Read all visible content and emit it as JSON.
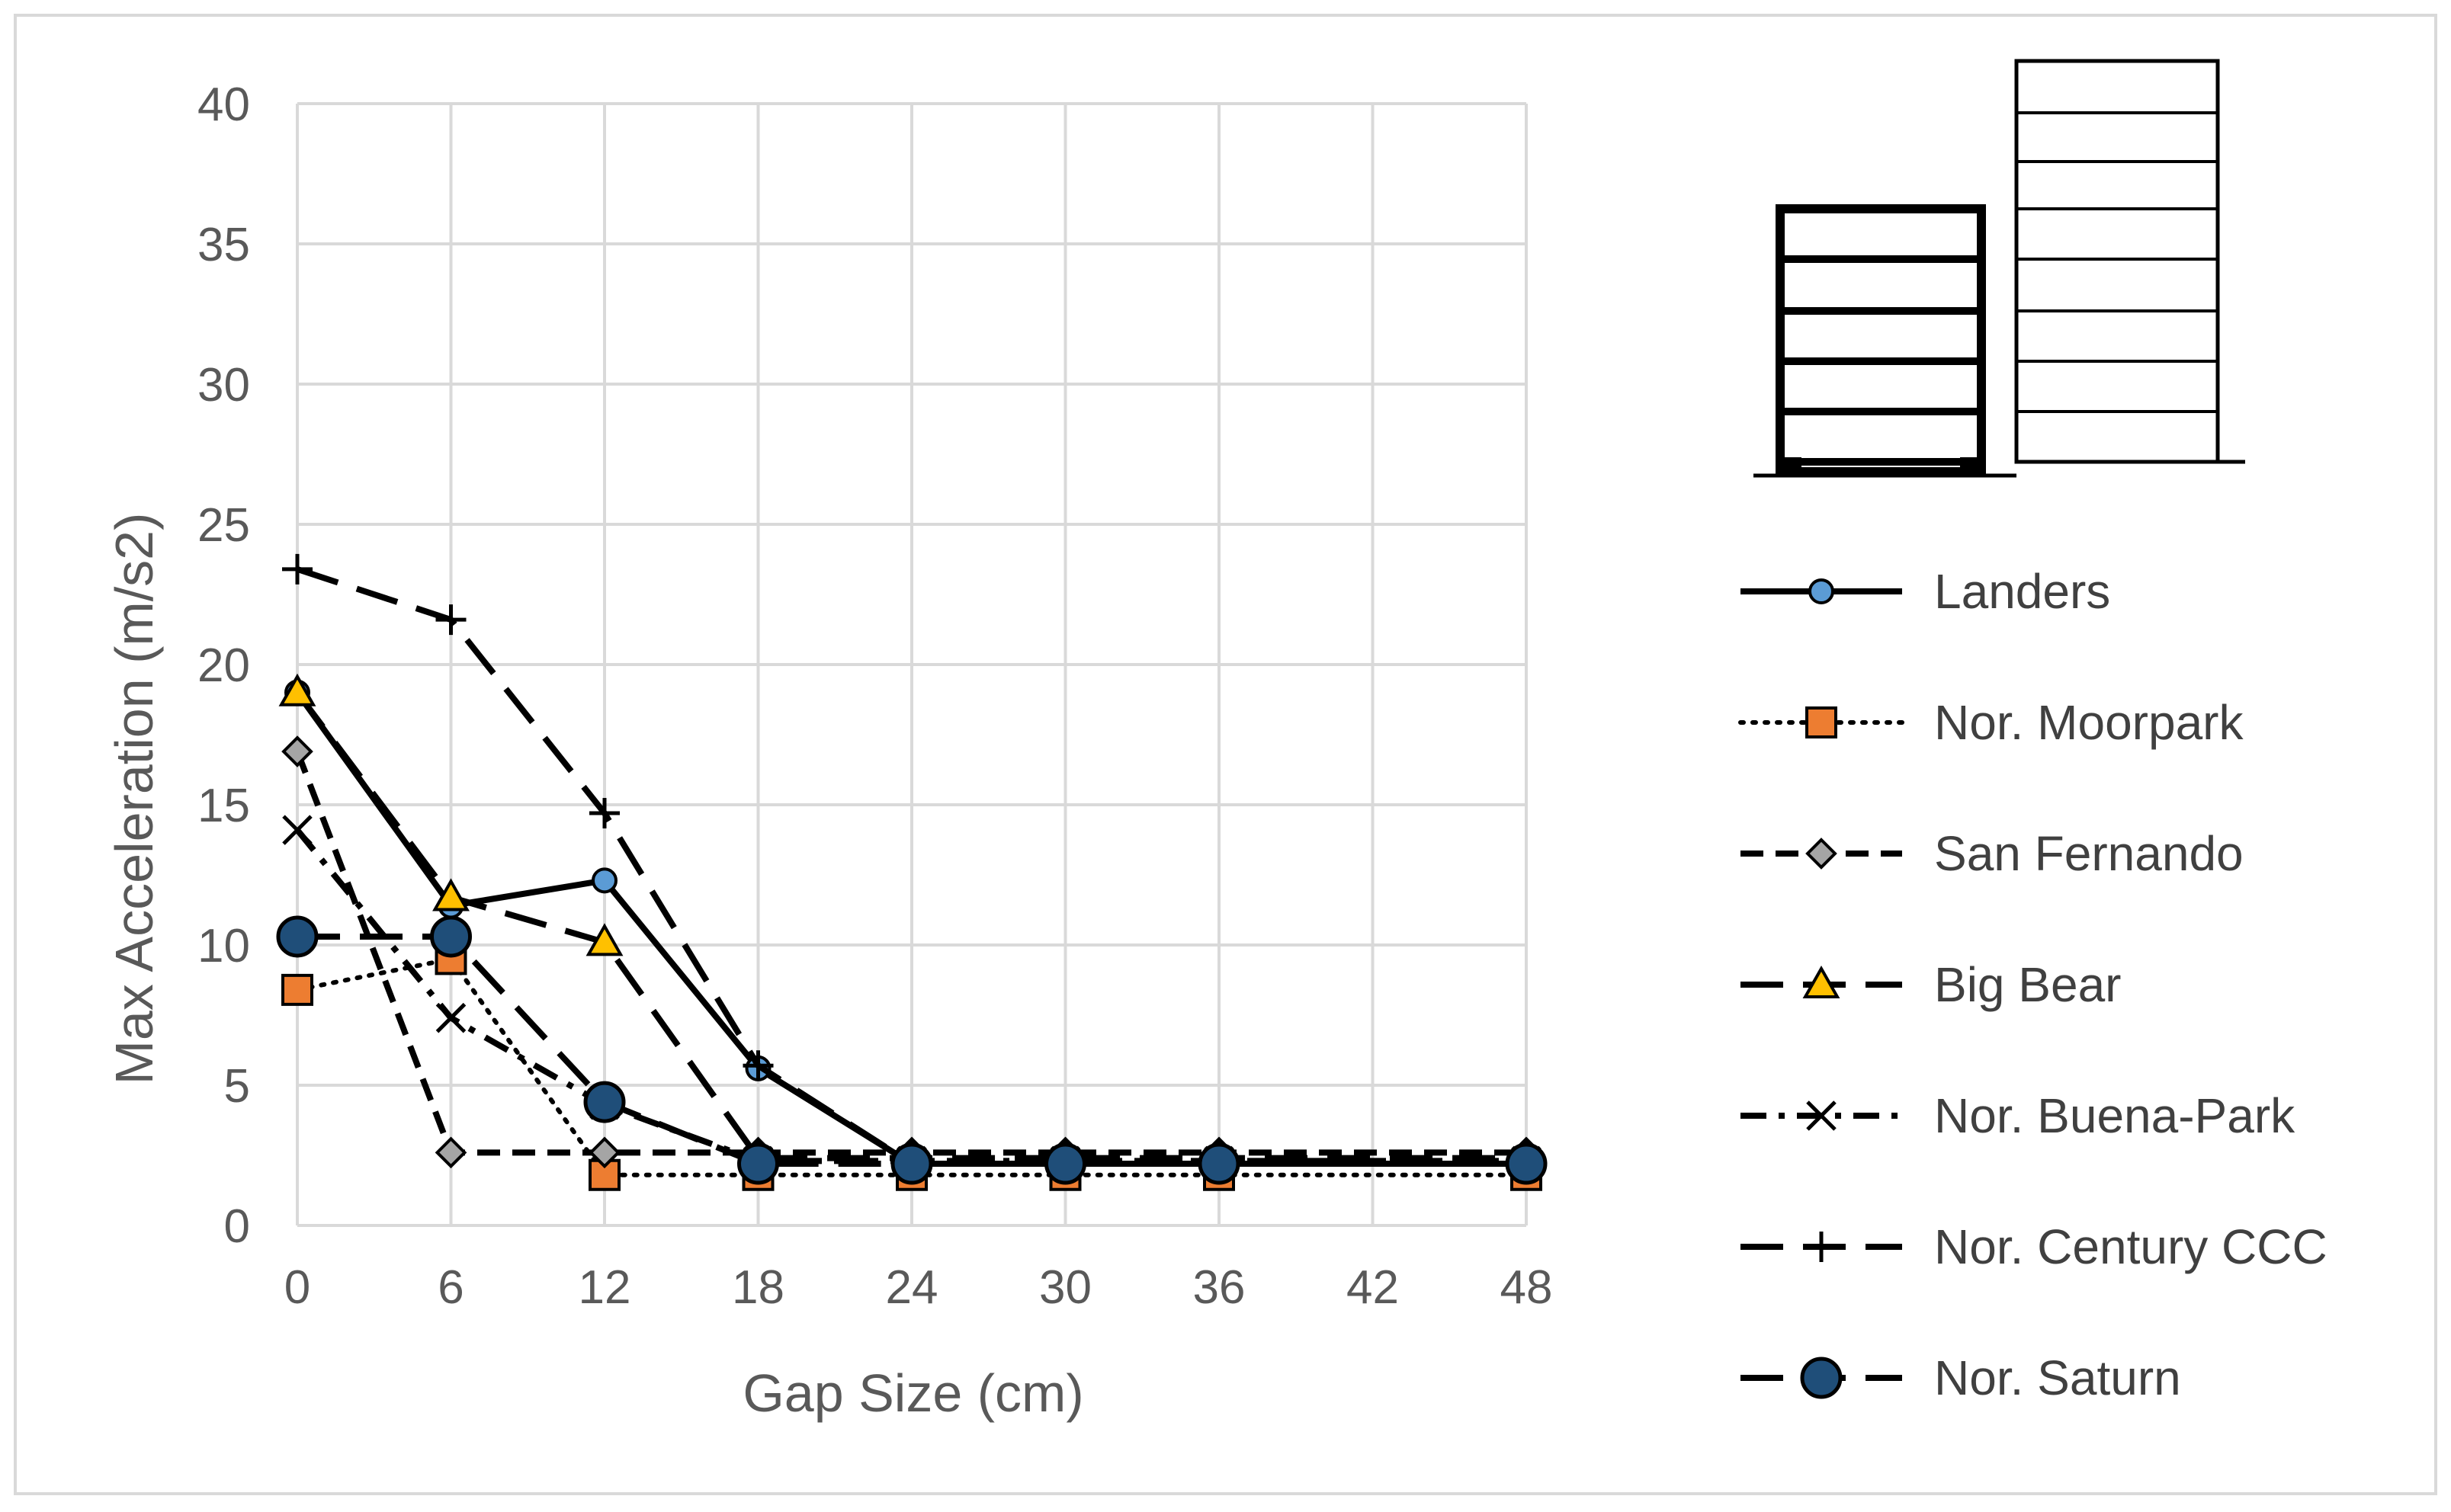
{
  "chart_data": {
    "type": "line",
    "title": "",
    "xlabel": "Gap Size (cm)",
    "ylabel": "Max Acceleration (m/s2)",
    "xlim": [
      0,
      48
    ],
    "ylim": [
      0,
      40
    ],
    "x_ticks": [
      0,
      6,
      12,
      18,
      24,
      30,
      36,
      42,
      48
    ],
    "y_ticks": [
      0,
      5,
      10,
      15,
      20,
      25,
      30,
      35,
      40
    ],
    "grid": true,
    "legend_position": "right",
    "x": [
      0,
      6,
      12,
      18,
      24,
      30,
      36,
      48
    ],
    "series": [
      {
        "name": "Landers",
        "values": [
          19.0,
          11.4,
          12.3,
          5.6,
          2.2,
          2.2,
          2.2,
          2.2
        ],
        "line": "solid",
        "marker": "circle",
        "marker_color": "#5b9bd5"
      },
      {
        "name": "Nor. Moorpark",
        "values": [
          8.4,
          9.5,
          1.8,
          1.8,
          1.8,
          1.8,
          1.8,
          1.8
        ],
        "line": "dotted",
        "marker": "square",
        "marker_color": "#ed7d31"
      },
      {
        "name": "San Fernando",
        "values": [
          16.9,
          2.6,
          2.6,
          2.6,
          2.6,
          2.6,
          2.6,
          2.6
        ],
        "line": "dashed",
        "marker": "diamond",
        "marker_color": "#a5a5a5"
      },
      {
        "name": "Big Bear",
        "values": [
          19.0,
          11.7,
          10.1,
          2.4,
          2.4,
          2.4,
          2.4,
          2.4
        ],
        "line": "longdash",
        "marker": "triangle",
        "marker_color": "#ffc000"
      },
      {
        "name": "Nor. Buena-Park",
        "values": [
          14.1,
          7.4,
          4.3,
          2.3,
          2.3,
          2.3,
          2.3,
          2.3
        ],
        "line": "dashdot",
        "marker": "x",
        "marker_color": "#000000"
      },
      {
        "name": "Nor. Century CCC",
        "values": [
          23.4,
          21.6,
          14.7,
          5.7,
          2.2,
          2.2,
          2.2,
          2.2
        ],
        "line": "longdash",
        "marker": "plus",
        "marker_color": "#000000"
      },
      {
        "name": "Nor. Saturn",
        "values": [
          10.3,
          10.3,
          4.4,
          2.2,
          2.2,
          2.2,
          2.2,
          2.2
        ],
        "line": "longdash",
        "marker": "bigcircle",
        "marker_color": "#1f4e79"
      }
    ]
  }
}
